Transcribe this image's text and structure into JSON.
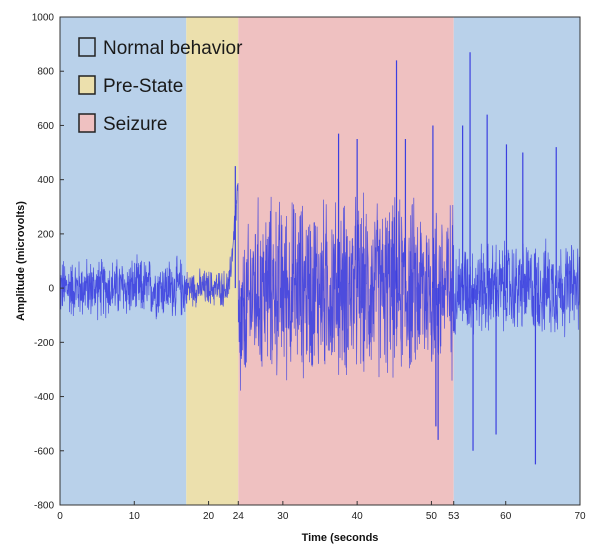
{
  "chart_data": {
    "type": "line",
    "title": "",
    "xlabel": "Time (seconds",
    "ylabel": "Amplitude (microvolts)",
    "xlim": [
      0,
      70
    ],
    "ylim": [
      -800,
      1000
    ],
    "x_ticks": [
      0,
      10,
      20,
      24,
      30,
      40,
      50,
      53,
      60,
      70
    ],
    "y_ticks": [
      1000,
      800,
      600,
      400,
      200,
      0,
      -200,
      -400,
      -600,
      -800
    ],
    "grid": false,
    "legend_position": "top-left",
    "colors": {
      "line": "#3b3fe0",
      "normal": "#b9d1ea",
      "pre_state": "#ece0ad",
      "seizure": "#efc1c1"
    },
    "regions": [
      {
        "name": "Normal behavior",
        "x_start": 0,
        "x_end": 17,
        "color": "#b9d1ea"
      },
      {
        "name": "Pre-State",
        "x_start": 17,
        "x_end": 24,
        "color": "#ece0ad"
      },
      {
        "name": "Seizure",
        "x_start": 24,
        "x_end": 53,
        "color": "#efc1c1"
      },
      {
        "name": "Normal behavior",
        "x_start": 53,
        "x_end": 70,
        "color": "#b9d1ea"
      }
    ],
    "legend": [
      {
        "label": "Normal behavior",
        "color": "#b9d1ea"
      },
      {
        "label": "Pre-State",
        "color": "#ece0ad"
      },
      {
        "label": "Seizure",
        "color": "#efc1c1"
      }
    ],
    "series": [
      {
        "segments": [
          {
            "x_start": 0,
            "x_end": 17,
            "mean": 0,
            "amplitude": 130
          },
          {
            "x_start": 17,
            "x_end": 24,
            "mean": 0,
            "amplitude": 80
          },
          {
            "x_start": 24,
            "x_end": 26,
            "mean": 0,
            "amplitude": 350
          },
          {
            "x_start": 26,
            "x_end": 53,
            "mean": 0,
            "amplitude": 380
          },
          {
            "x_start": 53,
            "x_end": 70,
            "mean": 0,
            "amplitude": 200
          }
        ],
        "spikes": [
          {
            "x": 23.6,
            "y": 450
          },
          {
            "x": 24.4,
            "y": -250
          },
          {
            "x": 37.5,
            "y": 570
          },
          {
            "x": 40.0,
            "y": 550
          },
          {
            "x": 45.3,
            "y": 840
          },
          {
            "x": 46.5,
            "y": 550
          },
          {
            "x": 50.2,
            "y": 600
          },
          {
            "x": 50.6,
            "y": -510
          },
          {
            "x": 50.9,
            "y": -560
          },
          {
            "x": 54.2,
            "y": 600
          },
          {
            "x": 55.2,
            "y": 870
          },
          {
            "x": 55.6,
            "y": -600
          },
          {
            "x": 57.5,
            "y": 640
          },
          {
            "x": 60.1,
            "y": 530
          },
          {
            "x": 62.3,
            "y": 500
          },
          {
            "x": 64.0,
            "y": -650
          },
          {
            "x": 66.8,
            "y": 520
          },
          {
            "x": 58.7,
            "y": -540
          }
        ]
      }
    ]
  }
}
